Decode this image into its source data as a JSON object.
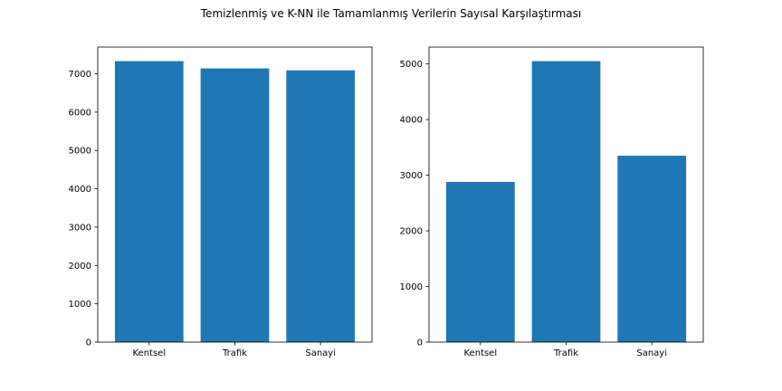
{
  "figure": {
    "title": "Temizlenmiş ve K-NN ile Tamamlanmış Verilerin Sayısal Karşılaştırması"
  },
  "chart_data": [
    {
      "type": "bar",
      "categories": [
        "Kentsel",
        "Trafik",
        "Sanayi"
      ],
      "values": [
        7330,
        7140,
        7090
      ],
      "ylim": [
        0,
        7697
      ],
      "yticks": [
        0,
        1000,
        2000,
        3000,
        4000,
        5000,
        6000,
        7000
      ],
      "bar_color": "#1f77b4",
      "grid": false
    },
    {
      "type": "bar",
      "categories": [
        "Kentsel",
        "Trafik",
        "Sanayi"
      ],
      "values": [
        2880,
        5050,
        3350
      ],
      "ylim": [
        0,
        5303
      ],
      "yticks": [
        0,
        1000,
        2000,
        3000,
        4000,
        5000
      ],
      "bar_color": "#1f77b4",
      "grid": false
    }
  ]
}
